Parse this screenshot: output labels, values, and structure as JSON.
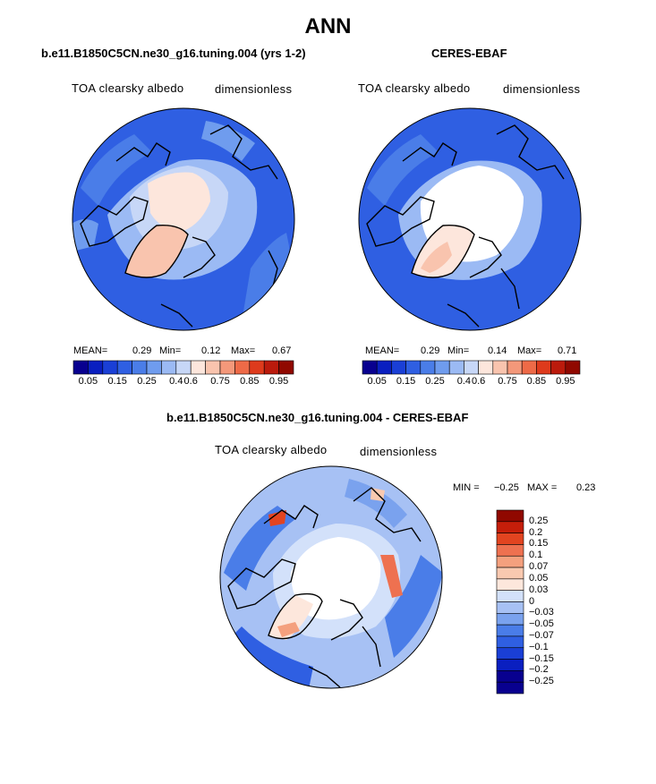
{
  "page_title": "ANN",
  "colors": {
    "abs_levels": [
      "#08008f",
      "#0a1fc0",
      "#1a3fd6",
      "#2f5fe2",
      "#4a7de8",
      "#6f9cee",
      "#9bbaf4",
      "#c7d7f7",
      "#fde6dc",
      "#f9c4ae",
      "#f4987a",
      "#ee6a47",
      "#de3a1c",
      "#bb1a0c",
      "#900800"
    ],
    "diff_levels": [
      "#08008f",
      "#0a1fc0",
      "#1a3fd6",
      "#2f5fe2",
      "#4a7de8",
      "#7aa2ee",
      "#a7c1f4",
      "#d3e1fa",
      "#fde7dc",
      "#f9c9b0",
      "#f4a07e",
      "#ee7150",
      "#e24420",
      "#c51e0a",
      "#900800"
    ],
    "coastline": "#000000"
  },
  "panels": {
    "model": {
      "title": "b.e11.B1850C5CN.ne30_g16.tuning.004 (yrs 1-2)",
      "variable": "TOA clearsky albedo",
      "units": "dimensionless",
      "mean_label": "MEAN=",
      "mean_value": "0.29",
      "min_label": "Min=",
      "min_value": "0.12",
      "max_label": "Max=",
      "max_value": "0.67",
      "colorbar_ticks": [
        "0.05",
        "0.15",
        "0.25",
        "0.4",
        "0.6",
        "0.75",
        "0.85",
        "0.95"
      ]
    },
    "obs": {
      "title": "CERES-EBAF",
      "variable": "TOA clearsky albedo",
      "units": "dimensionless",
      "mean_label": "MEAN=",
      "mean_value": "0.29",
      "min_label": "Min=",
      "min_value": "0.14",
      "max_label": "Max=",
      "max_value": "0.71",
      "colorbar_ticks": [
        "0.05",
        "0.15",
        "0.25",
        "0.4",
        "0.6",
        "0.75",
        "0.85",
        "0.95"
      ]
    },
    "diff": {
      "title": "b.e11.B1850C5CN.ne30_g16.tuning.004 - CERES-EBAF",
      "variable": "TOA clearsky albedo",
      "units": "dimensionless",
      "min_label": "MIN =",
      "min_value": "−0.25",
      "max_label": "MAX =",
      "max_value": "0.23",
      "colorbar_ticks": [
        "0.25",
        "0.2",
        "0.15",
        "0.1",
        "0.07",
        "0.05",
        "0.03",
        "0",
        "−0.03",
        "−0.05",
        "−0.07",
        "−0.1",
        "−0.15",
        "−0.2",
        "−0.25"
      ]
    }
  }
}
